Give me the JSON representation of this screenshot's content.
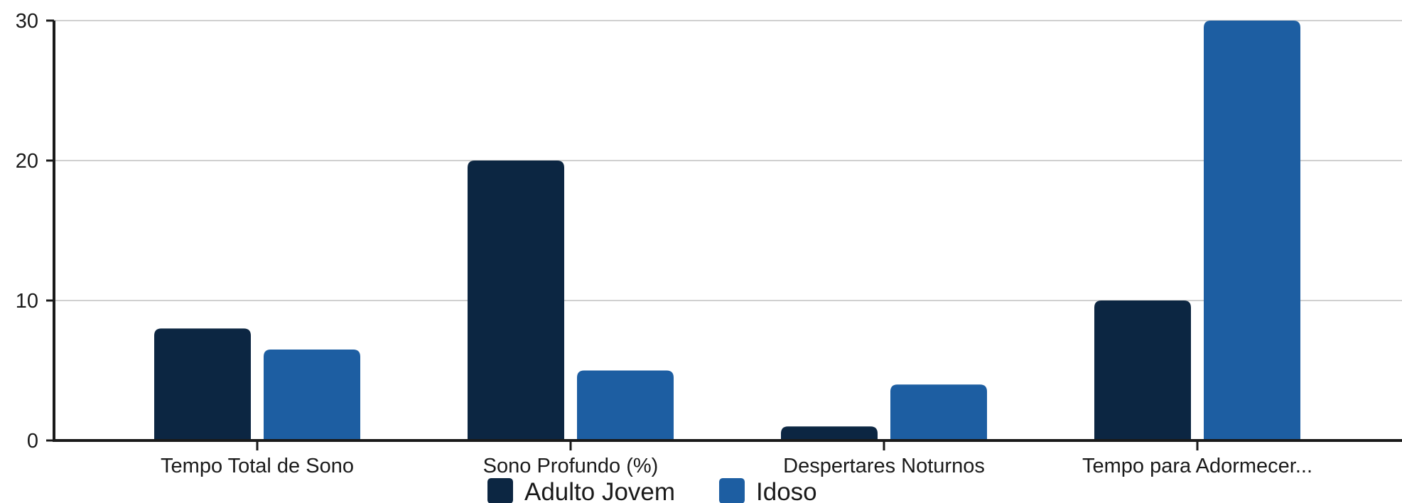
{
  "chart_data": {
    "type": "bar",
    "categories": [
      "Tempo Total de Sono",
      "Sono Profundo (%)",
      "Despertares Noturnos",
      "Tempo para Adormecer..."
    ],
    "series": [
      {
        "name": "Adulto Jovem",
        "values": [
          8,
          20,
          1,
          10
        ],
        "color": "#0c2642"
      },
      {
        "name": "Idoso",
        "values": [
          6.5,
          5,
          4,
          30
        ],
        "color": "#1d5ea2"
      }
    ],
    "ylim": [
      0,
      30
    ],
    "yticks": [
      0,
      10,
      20,
      30
    ],
    "grid": true,
    "legend": "bottom-center",
    "title": "",
    "xlabel": "",
    "ylabel": ""
  }
}
